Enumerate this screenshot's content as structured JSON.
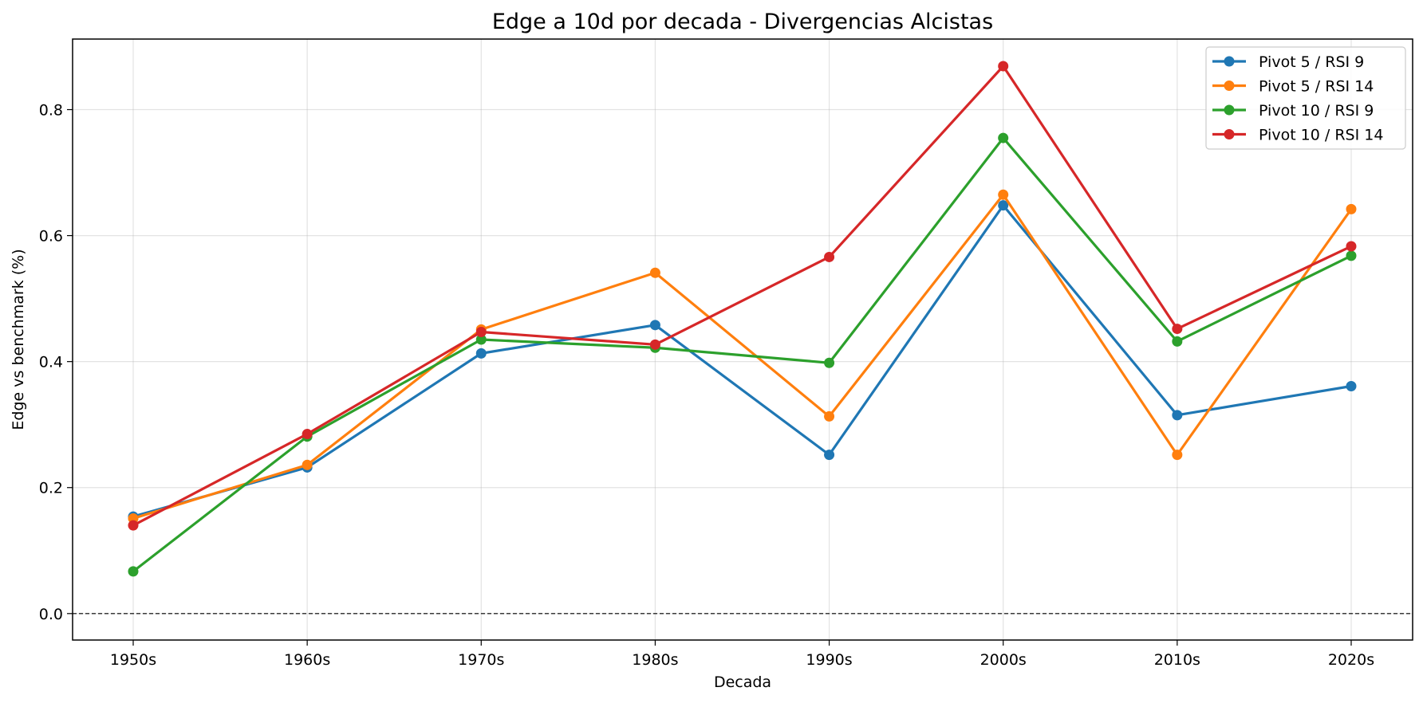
{
  "chart_data": {
    "type": "line",
    "title": "Edge a 10d por decada - Divergencias Alcistas",
    "xlabel": "Decada",
    "ylabel": "Edge vs benchmark (%)",
    "categories": [
      "1950s",
      "1960s",
      "1970s",
      "1980s",
      "1990s",
      "2000s",
      "2010s",
      "2020s"
    ],
    "ylim": [
      -0.042,
      0.912
    ],
    "yticks": [
      0.0,
      0.2,
      0.4,
      0.6,
      0.8
    ],
    "ytick_labels": [
      "0.0",
      "0.2",
      "0.4",
      "0.6",
      "0.8"
    ],
    "grid": true,
    "reference_line": {
      "y": 0.0,
      "style": "dashed"
    },
    "legend": {
      "placement": "top-right",
      "entries": [
        "Pivot 5 / RSI 9",
        "Pivot 5 / RSI 14",
        "Pivot 10 / RSI 9",
        "Pivot 10 / RSI 14"
      ]
    },
    "series": [
      {
        "name": "Pivot 5 / RSI 9",
        "color": "#1f77b4",
        "values": [
          0.154,
          0.232,
          0.413,
          0.458,
          0.252,
          0.648,
          0.315,
          0.361
        ]
      },
      {
        "name": "Pivot 5 / RSI 14",
        "color": "#ff7f0e",
        "values": [
          0.151,
          0.236,
          0.451,
          0.541,
          0.313,
          0.665,
          0.252,
          0.642
        ]
      },
      {
        "name": "Pivot 10 / RSI 9",
        "color": "#2ca02c",
        "values": [
          0.067,
          0.281,
          0.435,
          0.422,
          0.398,
          0.755,
          0.432,
          0.568
        ]
      },
      {
        "name": "Pivot 10 / RSI 14",
        "color": "#d62728",
        "values": [
          0.14,
          0.285,
          0.447,
          0.427,
          0.566,
          0.869,
          0.452,
          0.583
        ]
      }
    ]
  }
}
